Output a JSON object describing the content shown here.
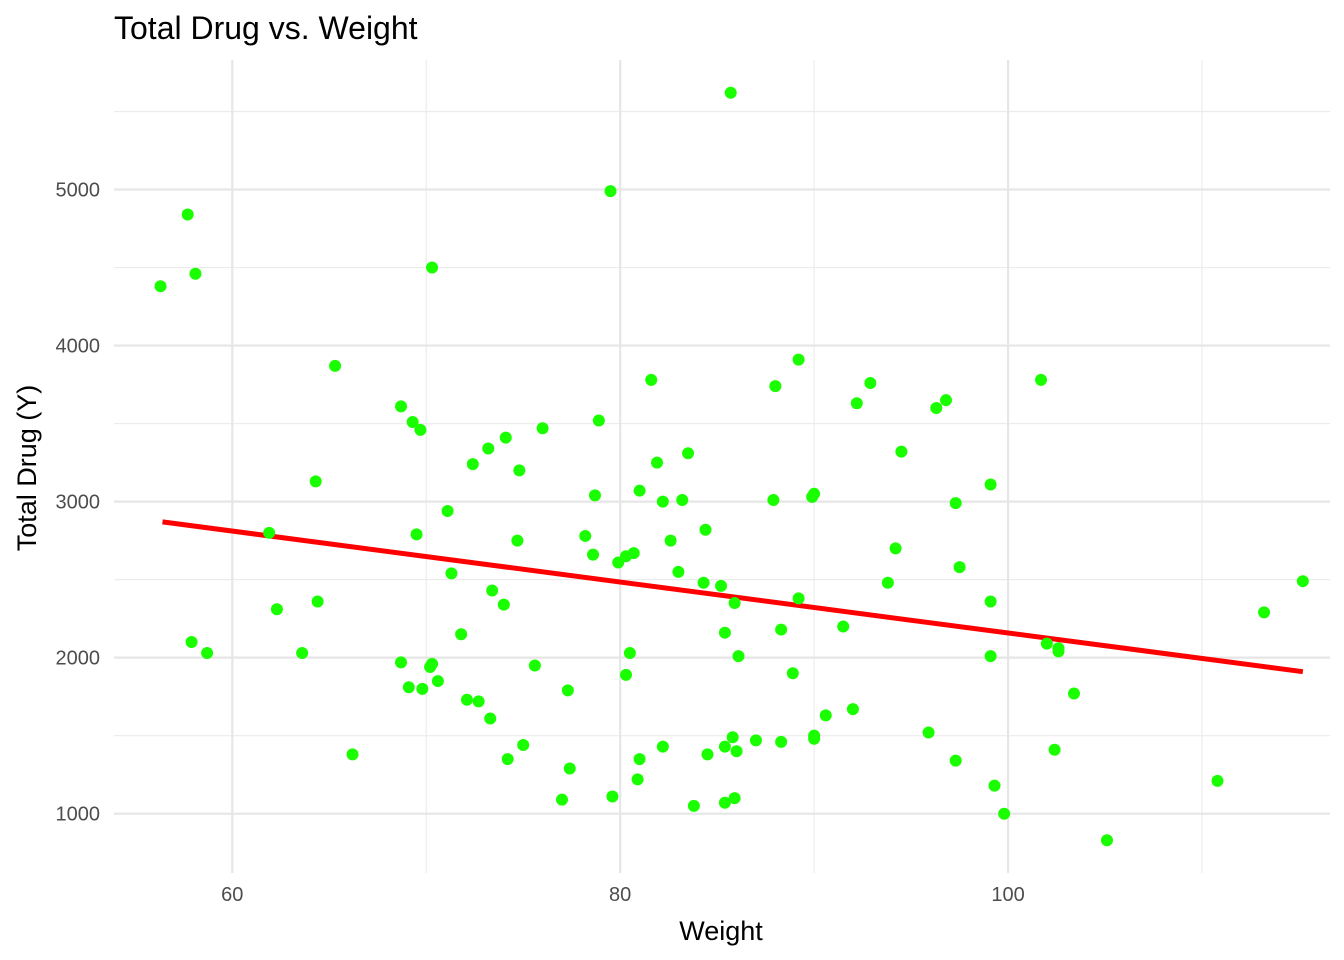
{
  "chart_data": {
    "type": "scatter",
    "title": "Total Drug vs. Weight",
    "xlabel": "Weight",
    "ylabel": "Total Drug (Y)",
    "xlim": [
      53.9,
      116.6
    ],
    "ylim": [
      620,
      5830
    ],
    "x_ticks": [
      60,
      80,
      100
    ],
    "y_ticks": [
      1000,
      2000,
      3000,
      4000,
      5000
    ],
    "grid": true,
    "legend": "none",
    "point_color": "#19ff00",
    "line_color": "#ff0000",
    "trend_line": {
      "x": [
        56.4,
        115.2
      ],
      "y": [
        2870,
        1910
      ]
    },
    "points": [
      {
        "x": 56.3,
        "y": 4380
      },
      {
        "x": 57.7,
        "y": 4840
      },
      {
        "x": 58.1,
        "y": 4460
      },
      {
        "x": 57.9,
        "y": 2100
      },
      {
        "x": 58.7,
        "y": 2030
      },
      {
        "x": 61.9,
        "y": 2800
      },
      {
        "x": 62.3,
        "y": 2310
      },
      {
        "x": 63.6,
        "y": 2030
      },
      {
        "x": 64.3,
        "y": 3130
      },
      {
        "x": 64.4,
        "y": 2360
      },
      {
        "x": 65.3,
        "y": 3870
      },
      {
        "x": 66.2,
        "y": 1380
      },
      {
        "x": 68.7,
        "y": 3610
      },
      {
        "x": 69.3,
        "y": 3510
      },
      {
        "x": 69.7,
        "y": 3460
      },
      {
        "x": 69.5,
        "y": 2790
      },
      {
        "x": 68.7,
        "y": 1970
      },
      {
        "x": 69.1,
        "y": 1810
      },
      {
        "x": 69.8,
        "y": 1800
      },
      {
        "x": 70.3,
        "y": 4500
      },
      {
        "x": 70.3,
        "y": 1960
      },
      {
        "x": 70.2,
        "y": 1940
      },
      {
        "x": 70.6,
        "y": 1850
      },
      {
        "x": 71.1,
        "y": 2940
      },
      {
        "x": 71.3,
        "y": 2540
      },
      {
        "x": 71.8,
        "y": 2150
      },
      {
        "x": 72.1,
        "y": 1730
      },
      {
        "x": 72.4,
        "y": 3240
      },
      {
        "x": 72.7,
        "y": 1720
      },
      {
        "x": 73.2,
        "y": 3340
      },
      {
        "x": 73.4,
        "y": 2430
      },
      {
        "x": 73.3,
        "y": 1610
      },
      {
        "x": 74.1,
        "y": 3410
      },
      {
        "x": 74.0,
        "y": 2340
      },
      {
        "x": 74.2,
        "y": 1350
      },
      {
        "x": 74.8,
        "y": 3200
      },
      {
        "x": 74.7,
        "y": 2750
      },
      {
        "x": 75.0,
        "y": 1440
      },
      {
        "x": 75.6,
        "y": 1950
      },
      {
        "x": 76.0,
        "y": 3470
      },
      {
        "x": 77.0,
        "y": 1090
      },
      {
        "x": 77.3,
        "y": 1790
      },
      {
        "x": 77.4,
        "y": 1290
      },
      {
        "x": 78.2,
        "y": 2780
      },
      {
        "x": 78.6,
        "y": 2660
      },
      {
        "x": 78.7,
        "y": 3040
      },
      {
        "x": 78.9,
        "y": 3520
      },
      {
        "x": 79.5,
        "y": 4990
      },
      {
        "x": 79.6,
        "y": 1110
      },
      {
        "x": 79.9,
        "y": 2610
      },
      {
        "x": 80.3,
        "y": 2650
      },
      {
        "x": 80.7,
        "y": 2670
      },
      {
        "x": 80.3,
        "y": 1890
      },
      {
        "x": 80.5,
        "y": 2030
      },
      {
        "x": 80.9,
        "y": 1220
      },
      {
        "x": 81.0,
        "y": 1350
      },
      {
        "x": 81.0,
        "y": 3070
      },
      {
        "x": 81.6,
        "y": 3780
      },
      {
        "x": 81.9,
        "y": 3250
      },
      {
        "x": 82.2,
        "y": 3000
      },
      {
        "x": 82.2,
        "y": 1430
      },
      {
        "x": 82.6,
        "y": 2750
      },
      {
        "x": 83.0,
        "y": 2550
      },
      {
        "x": 83.2,
        "y": 3010
      },
      {
        "x": 83.5,
        "y": 3310
      },
      {
        "x": 83.8,
        "y": 1050
      },
      {
        "x": 84.3,
        "y": 2480
      },
      {
        "x": 84.4,
        "y": 2820
      },
      {
        "x": 84.5,
        "y": 1380
      },
      {
        "x": 85.2,
        "y": 2460
      },
      {
        "x": 85.4,
        "y": 2160
      },
      {
        "x": 85.4,
        "y": 1430
      },
      {
        "x": 85.4,
        "y": 1070
      },
      {
        "x": 85.7,
        "y": 5620
      },
      {
        "x": 85.8,
        "y": 1490
      },
      {
        "x": 85.9,
        "y": 2350
      },
      {
        "x": 85.9,
        "y": 1100
      },
      {
        "x": 86.0,
        "y": 1400
      },
      {
        "x": 86.1,
        "y": 2010
      },
      {
        "x": 87.0,
        "y": 1470
      },
      {
        "x": 87.9,
        "y": 3010
      },
      {
        "x": 88.0,
        "y": 3740
      },
      {
        "x": 88.3,
        "y": 2180
      },
      {
        "x": 88.3,
        "y": 1460
      },
      {
        "x": 88.9,
        "y": 1900
      },
      {
        "x": 89.2,
        "y": 3910
      },
      {
        "x": 89.2,
        "y": 2380
      },
      {
        "x": 89.9,
        "y": 3030
      },
      {
        "x": 90.0,
        "y": 3050
      },
      {
        "x": 90.0,
        "y": 1500
      },
      {
        "x": 90.0,
        "y": 1480
      },
      {
        "x": 90.6,
        "y": 1630
      },
      {
        "x": 91.5,
        "y": 2200
      },
      {
        "x": 92.0,
        "y": 1670
      },
      {
        "x": 92.2,
        "y": 3630
      },
      {
        "x": 92.9,
        "y": 3760
      },
      {
        "x": 93.8,
        "y": 2480
      },
      {
        "x": 94.2,
        "y": 2700
      },
      {
        "x": 94.5,
        "y": 3320
      },
      {
        "x": 95.9,
        "y": 1520
      },
      {
        "x": 96.3,
        "y": 3600
      },
      {
        "x": 96.8,
        "y": 3650
      },
      {
        "x": 97.3,
        "y": 2990
      },
      {
        "x": 97.3,
        "y": 1340
      },
      {
        "x": 97.5,
        "y": 2580
      },
      {
        "x": 99.1,
        "y": 3110
      },
      {
        "x": 99.1,
        "y": 2360
      },
      {
        "x": 99.1,
        "y": 2010
      },
      {
        "x": 99.3,
        "y": 1180
      },
      {
        "x": 99.8,
        "y": 1000
      },
      {
        "x": 101.7,
        "y": 3780
      },
      {
        "x": 102.0,
        "y": 2090
      },
      {
        "x": 102.4,
        "y": 1410
      },
      {
        "x": 102.6,
        "y": 2060
      },
      {
        "x": 102.6,
        "y": 2040
      },
      {
        "x": 103.4,
        "y": 1770
      },
      {
        "x": 105.1,
        "y": 830
      },
      {
        "x": 110.8,
        "y": 1210
      },
      {
        "x": 113.2,
        "y": 2290
      },
      {
        "x": 115.2,
        "y": 2490
      }
    ]
  }
}
